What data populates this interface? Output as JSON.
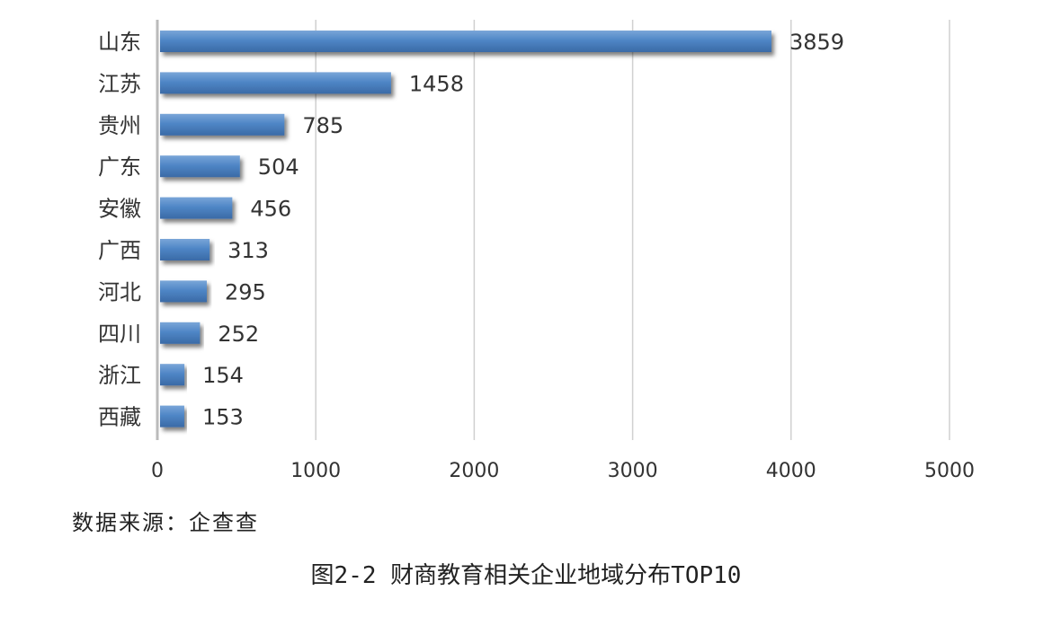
{
  "chart_data": {
    "type": "bar",
    "orientation": "horizontal",
    "categories": [
      "山东",
      "江苏",
      "贵州",
      "广东",
      "安徽",
      "广西",
      "河北",
      "四川",
      "浙江",
      "西藏"
    ],
    "values": [
      3859,
      1458,
      785,
      504,
      456,
      313,
      295,
      252,
      154,
      153
    ],
    "xlim": [
      0,
      5000
    ],
    "xticks": [
      0,
      1000,
      2000,
      3000,
      4000,
      5000
    ],
    "grid": true,
    "bar_color": "#4f86c6",
    "data_labels": true
  },
  "source": "数据来源：企查查",
  "caption": "图2-2 财商教育相关企业地域分布TOP10"
}
